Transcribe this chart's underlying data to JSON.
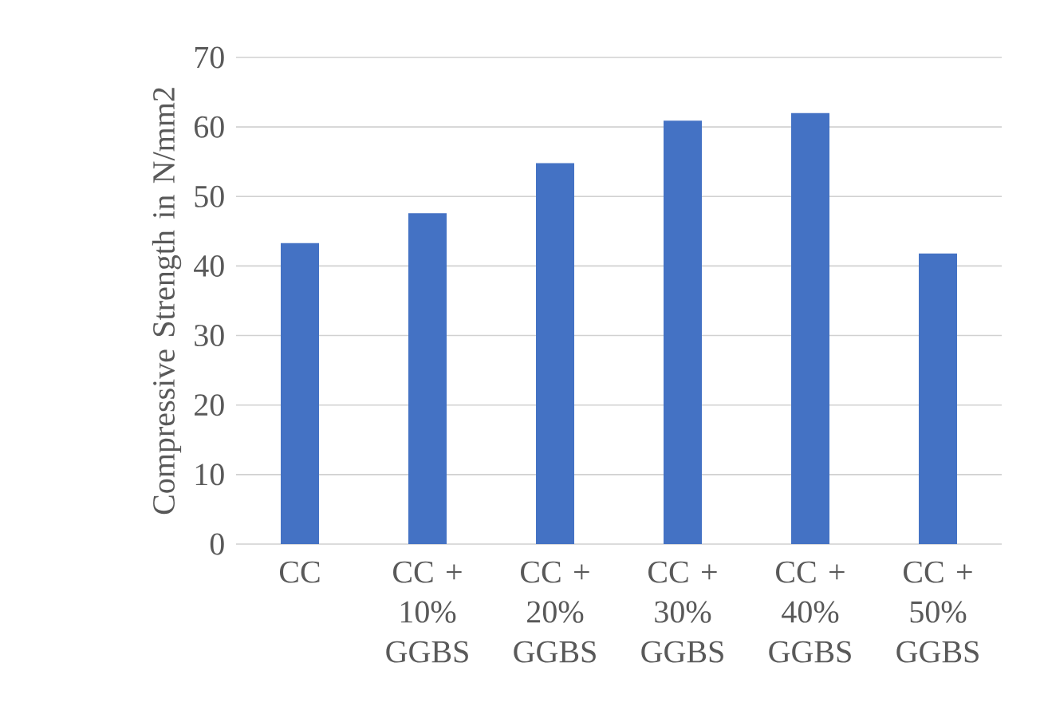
{
  "chart_data": {
    "type": "bar",
    "ylabel": "Compressive Strength in N/mm2",
    "categories": [
      "CC",
      "CC + 10% GGBS",
      "CC + 20% GGBS",
      "CC + 30% GGBS",
      "CC + 40% GGBS",
      "CC + 50% GGBS"
    ],
    "values": [
      43.3,
      47.6,
      54.8,
      60.9,
      62.0,
      41.8
    ],
    "color": "#4472c4",
    "ylim": [
      0,
      70
    ],
    "yticks": [
      0,
      10,
      20,
      30,
      40,
      50,
      60,
      70
    ],
    "grid": "y"
  }
}
